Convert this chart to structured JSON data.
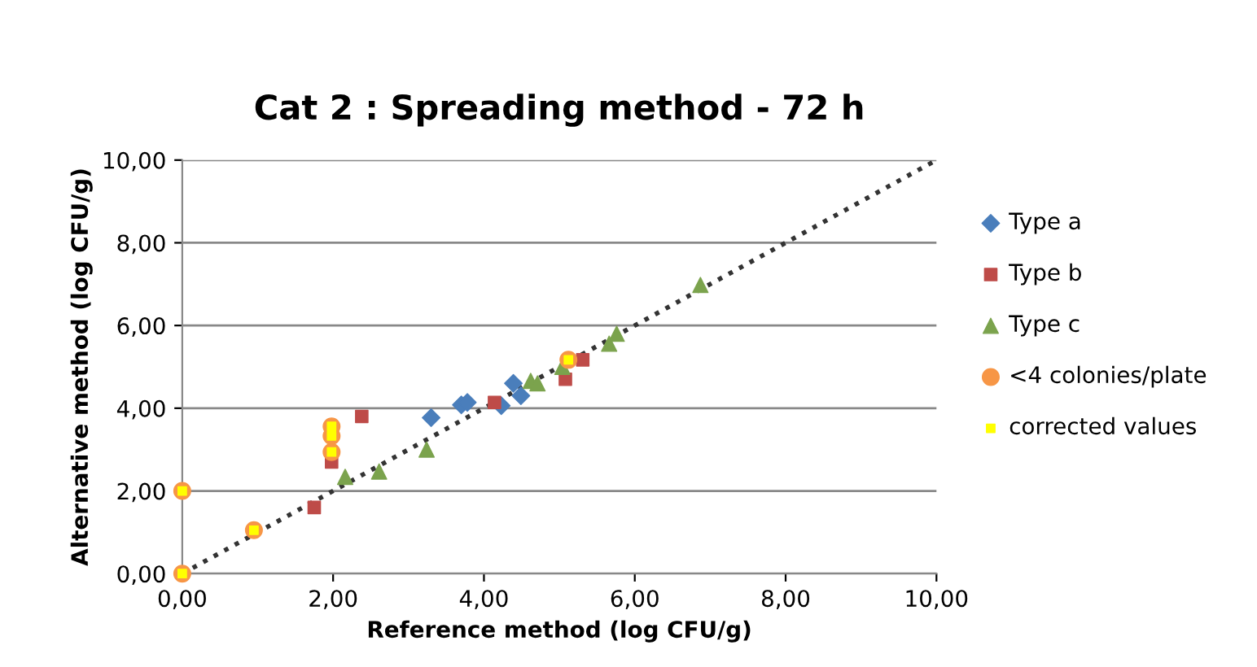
{
  "chart_data": {
    "type": "scatter",
    "title": "Cat 2 : Spreading method - 72 h",
    "xlabel": "Reference method (log CFU/g)",
    "ylabel": "Alternative method (log CFU/g)",
    "xlim": [
      0,
      10
    ],
    "ylim": [
      0,
      10
    ],
    "xticks": [
      {
        "value": 0,
        "label": "0,00"
      },
      {
        "value": 2,
        "label": "2,00"
      },
      {
        "value": 4,
        "label": "4,00"
      },
      {
        "value": 6,
        "label": "6,00"
      },
      {
        "value": 8,
        "label": "8,00"
      },
      {
        "value": 10,
        "label": "10,00"
      }
    ],
    "yticks": [
      {
        "value": 0,
        "label": "0,00"
      },
      {
        "value": 2,
        "label": "2,00"
      },
      {
        "value": 4,
        "label": "4,00"
      },
      {
        "value": 6,
        "label": "6,00"
      },
      {
        "value": 8,
        "label": "8,00"
      },
      {
        "value": 10,
        "label": "10,00"
      }
    ],
    "grid": "y",
    "legend": "right",
    "series": [
      {
        "type": "line",
        "color": "#333333",
        "line_style": "dotted",
        "marker": "none",
        "x": [
          0,
          10
        ],
        "values": [
          0,
          10
        ]
      },
      {
        "name": "Type a",
        "color": "#4a7ebb",
        "marker": "diamond",
        "x": [
          3.3,
          3.7,
          3.78,
          4.23,
          4.39,
          4.49
        ],
        "values": [
          3.77,
          4.08,
          4.14,
          4.06,
          4.6,
          4.3
        ]
      },
      {
        "name": "Type b",
        "color": "#be4b48",
        "marker": "square",
        "x": [
          1.75,
          1.98,
          2.38,
          4.14,
          5.08,
          5.31
        ],
        "values": [
          1.6,
          2.7,
          3.8,
          4.14,
          4.7,
          5.17
        ]
      },
      {
        "name": "Type c",
        "color": "#7ba34d",
        "marker": "triangle",
        "x": [
          2.16,
          2.61,
          3.24,
          4.62,
          4.71,
          5.04,
          5.66,
          5.76,
          6.87
        ],
        "values": [
          2.34,
          2.47,
          3.0,
          4.66,
          4.6,
          5.0,
          5.56,
          5.8,
          6.98
        ]
      },
      {
        "name": "<4 colonies/plate",
        "color": "#f79646",
        "marker": "circle",
        "x": [
          0,
          0,
          0.95,
          1.98,
          1.98,
          1.98,
          5.12
        ],
        "values": [
          0,
          2.0,
          1.05,
          2.94,
          3.33,
          3.56,
          5.17
        ]
      },
      {
        "name": "corrected values",
        "color": "#ffff00",
        "marker": "square",
        "x": [
          0,
          0,
          0.95,
          1.98,
          1.98,
          1.98,
          5.12
        ],
        "values": [
          0,
          2.0,
          1.05,
          2.94,
          3.33,
          3.56,
          5.17
        ]
      }
    ]
  }
}
